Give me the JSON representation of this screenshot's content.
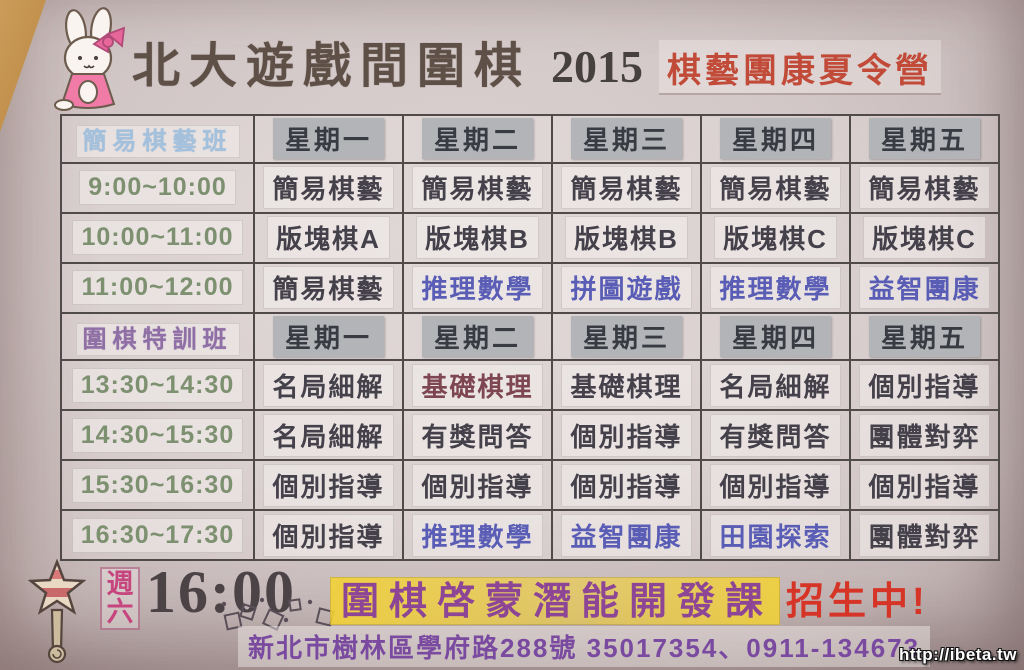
{
  "header": {
    "title": "北大遊戲間圍棋",
    "year": "2015",
    "subtitle": "棋藝團康夏令營",
    "mascot": "bunny-illustration"
  },
  "schedule": {
    "day_headers": [
      "星期一",
      "星期二",
      "星期三",
      "星期四",
      "星期五"
    ],
    "sections": [
      {
        "label": "簡易棋藝班",
        "label_style": "blue",
        "rows": [
          {
            "time": "9:00~10:00",
            "cells": [
              {
                "text": "簡易棋藝",
                "style": "dark"
              },
              {
                "text": "簡易棋藝",
                "style": "dark"
              },
              {
                "text": "簡易棋藝",
                "style": "dark"
              },
              {
                "text": "簡易棋藝",
                "style": "dark"
              },
              {
                "text": "簡易棋藝",
                "style": "dark"
              }
            ]
          },
          {
            "time": "10:00~11:00",
            "cells": [
              {
                "text": "版塊棋A",
                "style": "dark"
              },
              {
                "text": "版塊棋B",
                "style": "dark"
              },
              {
                "text": "版塊棋B",
                "style": "dark"
              },
              {
                "text": "版塊棋C",
                "style": "dark"
              },
              {
                "text": "版塊棋C",
                "style": "dark"
              }
            ]
          },
          {
            "time": "11:00~12:00",
            "cells": [
              {
                "text": "簡易棋藝",
                "style": "dark"
              },
              {
                "text": "推理數學",
                "style": "blue"
              },
              {
                "text": "拼圖遊戲",
                "style": "blue"
              },
              {
                "text": "推理數學",
                "style": "blue"
              },
              {
                "text": "益智團康",
                "style": "blue"
              }
            ]
          }
        ]
      },
      {
        "label": "圍棋特訓班",
        "label_style": "purple",
        "rows": [
          {
            "time": "13:30~14:30",
            "cells": [
              {
                "text": "名局細解",
                "style": "dark"
              },
              {
                "text": "基礎棋理",
                "style": "red"
              },
              {
                "text": "基礎棋理",
                "style": "dark"
              },
              {
                "text": "名局細解",
                "style": "dark"
              },
              {
                "text": "個別指導",
                "style": "dark"
              }
            ]
          },
          {
            "time": "14:30~15:30",
            "cells": [
              {
                "text": "名局細解",
                "style": "dark"
              },
              {
                "text": "有獎問答",
                "style": "dark"
              },
              {
                "text": "個別指導",
                "style": "dark"
              },
              {
                "text": "有獎問答",
                "style": "dark"
              },
              {
                "text": "團體對弈",
                "style": "dark"
              }
            ]
          },
          {
            "time": "15:30~16:30",
            "cells": [
              {
                "text": "個別指導",
                "style": "dark"
              },
              {
                "text": "個別指導",
                "style": "dark"
              },
              {
                "text": "個別指導",
                "style": "dark"
              },
              {
                "text": "個別指導",
                "style": "dark"
              },
              {
                "text": "個別指導",
                "style": "dark"
              }
            ]
          },
          {
            "time": "16:30~17:30",
            "cells": [
              {
                "text": "個別指導",
                "style": "dark"
              },
              {
                "text": "推理數學",
                "style": "blue"
              },
              {
                "text": "益智團康",
                "style": "blue"
              },
              {
                "text": "田園探索",
                "style": "blue"
              },
              {
                "text": "團體對弈",
                "style": "dark"
              }
            ]
          }
        ]
      }
    ]
  },
  "footer": {
    "weekday": "週六",
    "time": "16:00",
    "promo": "圍棋啓蒙潛能開發課",
    "cta": "招生中!",
    "address": "新北市樹林區學府路288號 35017354、0911-134673"
  },
  "watermark": "http://ibeta.tw",
  "colors": {
    "title_text": "#5e5046",
    "subtitle_red": "#c14b38",
    "time_green": "#7d9070",
    "course_dark": "#45414b",
    "course_blue": "#5a5db5",
    "course_red": "#7d4650",
    "section_blue": "#a3c0dc",
    "section_purple": "#8f6fa5",
    "promo_purple": "#8d4596",
    "promo_highlight": "#f4d232",
    "cta_red": "#d63426",
    "address_purple": "#7a4aa0",
    "paper": "#d3c8c8",
    "wood": "#c89a58"
  }
}
